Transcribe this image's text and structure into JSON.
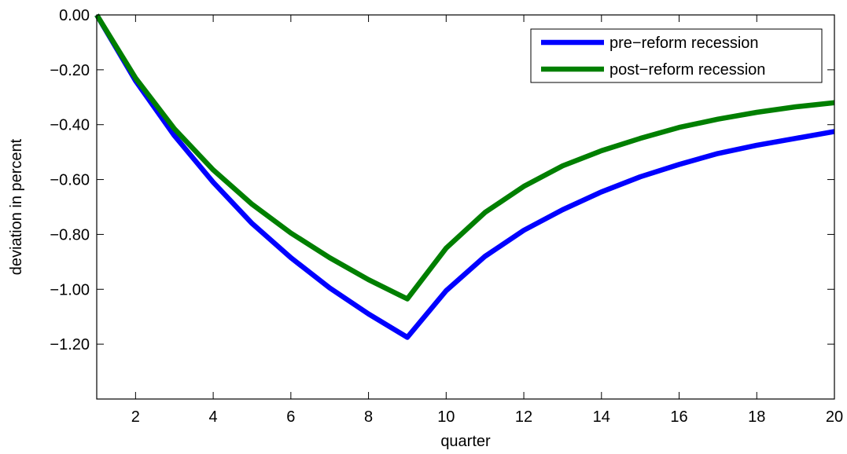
{
  "chart_data": {
    "type": "line",
    "xlabel": "quarter",
    "ylabel": "deviation in percent",
    "xlim": [
      1,
      20
    ],
    "ylim": [
      -1.4,
      0.0
    ],
    "x_ticks": [
      2,
      4,
      6,
      8,
      10,
      12,
      14,
      16,
      18,
      20
    ],
    "x_tick_labels": [
      "2",
      "4",
      "6",
      "8",
      "10",
      "12",
      "14",
      "16",
      "18",
      "20"
    ],
    "y_ticks": [
      0.0,
      -0.2,
      -0.4,
      -0.6,
      -0.8,
      -1.0,
      -1.2
    ],
    "y_tick_labels": [
      "0.00",
      "−0.20",
      "−0.40",
      "−0.60",
      "−0.80",
      "−1.00",
      "−1.20"
    ],
    "grid": false,
    "legend_position": "top-right",
    "x": [
      1,
      2,
      3,
      4,
      5,
      6,
      7,
      8,
      9,
      10,
      11,
      12,
      13,
      14,
      15,
      16,
      17,
      18,
      19,
      20
    ],
    "series": [
      {
        "name": "pre−reform recession",
        "color": "#0000ff",
        "values": [
          0.0,
          -0.24,
          -0.44,
          -0.61,
          -0.76,
          -0.885,
          -0.995,
          -1.09,
          -1.175,
          -1.005,
          -0.88,
          -0.785,
          -0.71,
          -0.645,
          -0.59,
          -0.545,
          -0.505,
          -0.475,
          -0.45,
          -0.425
        ]
      },
      {
        "name": "post−reform recession",
        "color": "#007f00",
        "values": [
          0.0,
          -0.23,
          -0.415,
          -0.565,
          -0.69,
          -0.795,
          -0.885,
          -0.965,
          -1.035,
          -0.85,
          -0.72,
          -0.625,
          -0.55,
          -0.495,
          -0.45,
          -0.41,
          -0.38,
          -0.355,
          -0.335,
          -0.32
        ]
      }
    ]
  }
}
